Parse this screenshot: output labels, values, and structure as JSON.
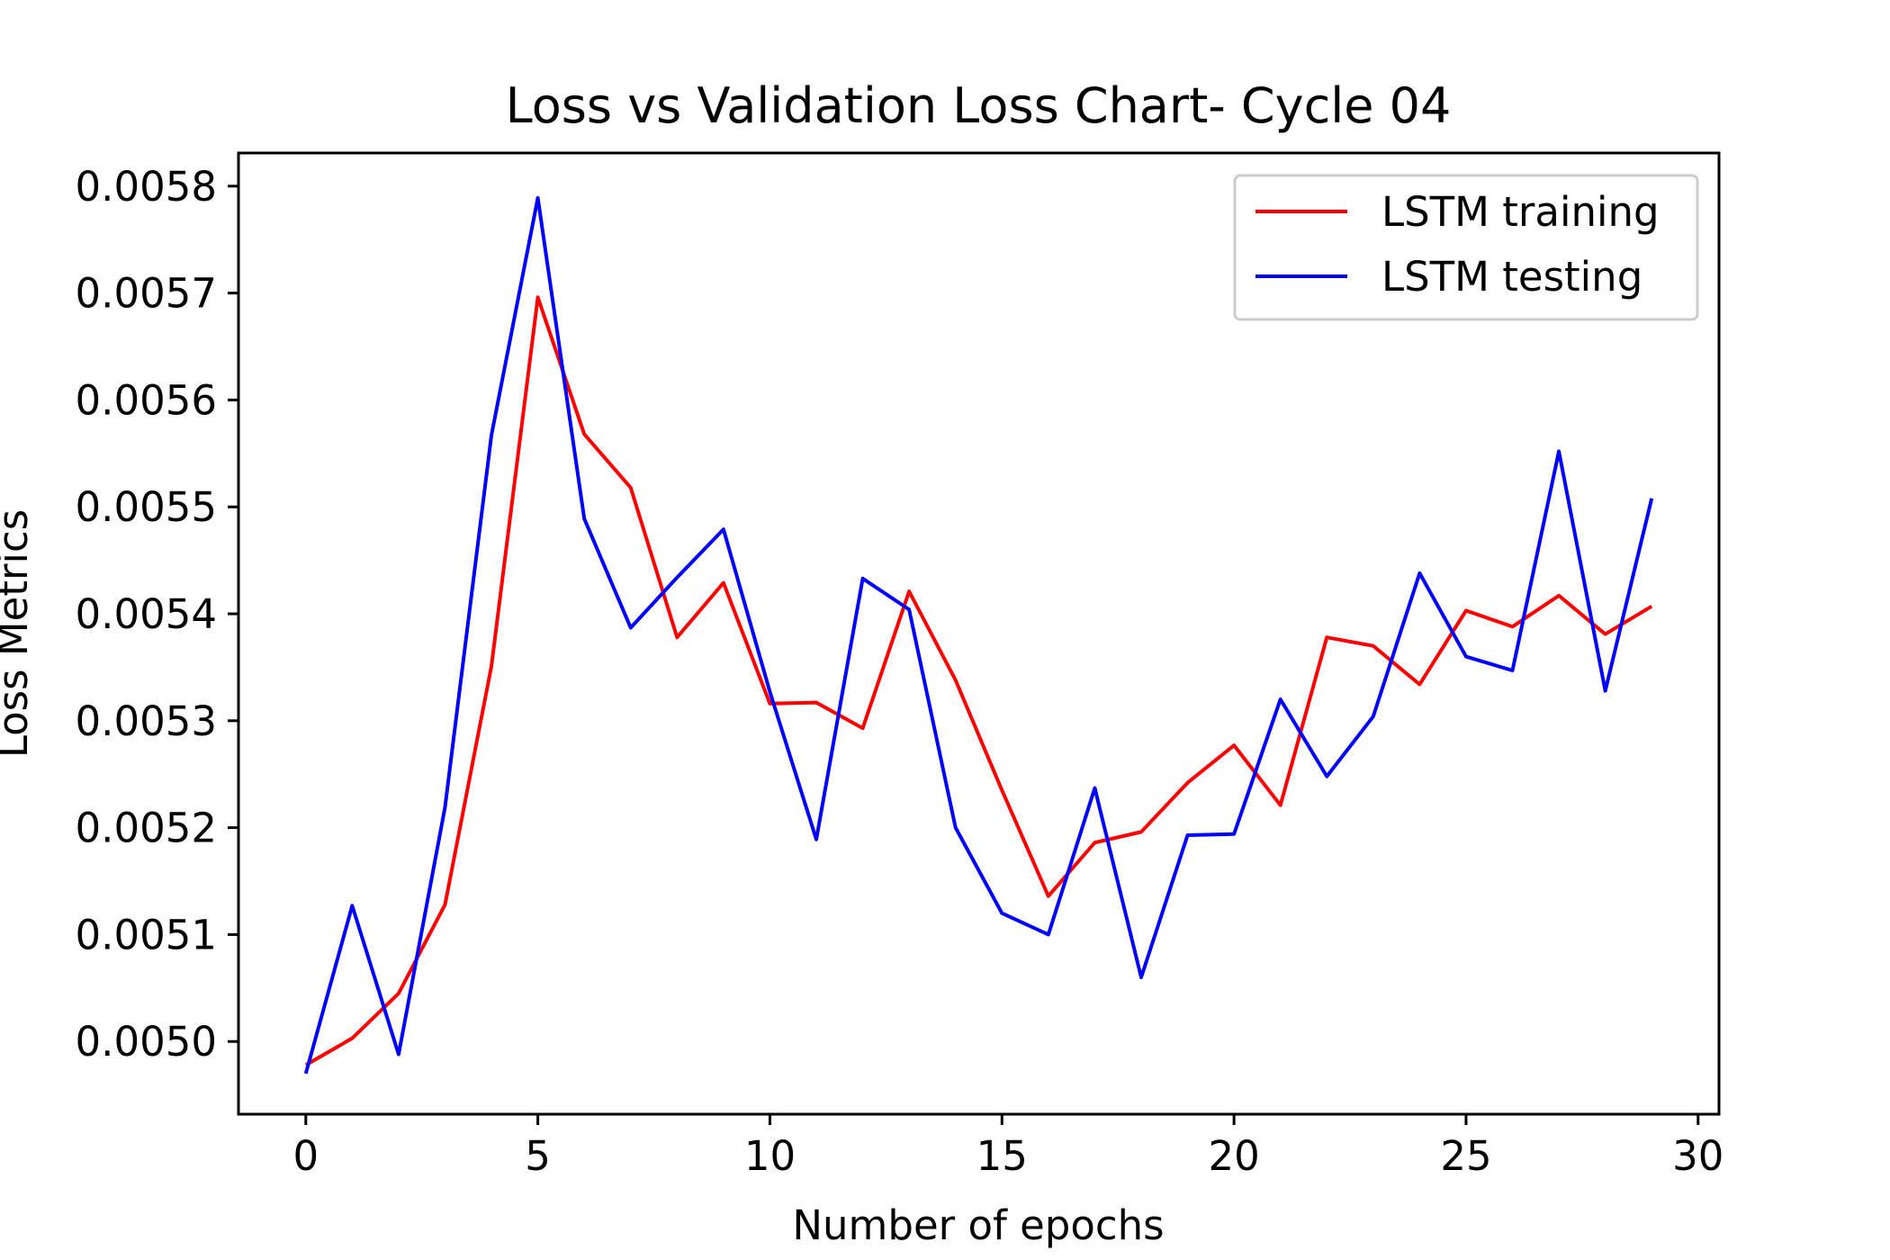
{
  "chart_data": {
    "type": "line",
    "title": "Loss vs Validation Loss Chart- Cycle 04",
    "xlabel": "Number of epochs",
    "ylabel": "Loss Metrics",
    "xlim": [
      -1.45,
      30.45
    ],
    "ylim": [
      0.004932,
      0.005831
    ],
    "xticks": [
      0,
      5,
      10,
      15,
      20,
      25,
      30
    ],
    "xtick_labels": [
      "0",
      "5",
      "10",
      "15",
      "20",
      "25",
      "30"
    ],
    "yticks": [
      0.005,
      0.0051,
      0.0052,
      0.0053,
      0.0054,
      0.0055,
      0.0056,
      0.0057,
      0.0058
    ],
    "ytick_labels": [
      "0.0050",
      "0.0051",
      "0.0052",
      "0.0053",
      "0.0054",
      "0.0055",
      "0.0056",
      "0.0057",
      "0.0058"
    ],
    "grid": false,
    "legend_position": "top-right",
    "x": [
      0,
      1,
      2,
      3,
      4,
      5,
      6,
      7,
      8,
      9,
      10,
      11,
      12,
      13,
      14,
      15,
      16,
      17,
      18,
      19,
      20,
      21,
      22,
      23,
      24,
      25,
      26,
      27,
      28,
      29
    ],
    "series": [
      {
        "name": "LSTM training",
        "color": "#ff0000",
        "values": [
          0.004978,
          0.005003,
          0.005045,
          0.005128,
          0.005351,
          0.005696,
          0.005568,
          0.005518,
          0.005378,
          0.005429,
          0.005316,
          0.005317,
          0.005293,
          0.005421,
          0.005338,
          0.005235,
          0.005136,
          0.005186,
          0.005196,
          0.005242,
          0.005277,
          0.005221,
          0.005378,
          0.00537,
          0.005334,
          0.005403,
          0.005388,
          0.005417,
          0.005381,
          0.005407
        ]
      },
      {
        "name": "LSTM testing",
        "color": "#0000ff",
        "values": [
          0.00497,
          0.005127,
          0.004988,
          0.005219,
          0.005567,
          0.005789,
          0.005489,
          0.005387,
          0.005434,
          0.005479,
          0.005327,
          0.005189,
          0.005433,
          0.005404,
          0.0052,
          0.00512,
          0.0051,
          0.005237,
          0.00506,
          0.005193,
          0.005194,
          0.00532,
          0.005248,
          0.005304,
          0.005438,
          0.00536,
          0.005347,
          0.005552,
          0.005328,
          0.005508
        ]
      }
    ]
  }
}
